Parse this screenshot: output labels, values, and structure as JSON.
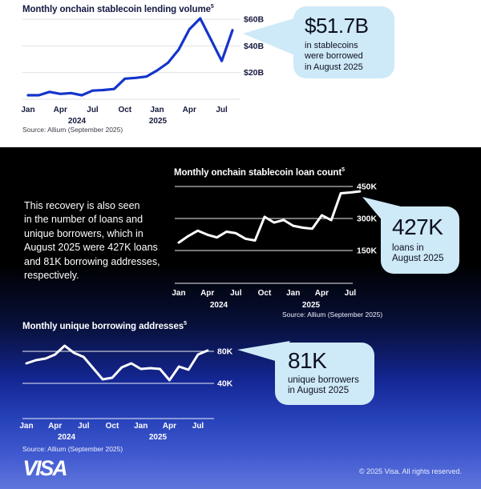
{
  "page": {
    "intro_text": "This recovery is also seen\nin the number of loans and\nunique borrowers, which in\nAugust 2025 were 427K loans\nand 81K borrowing addresses,\nrespectively.",
    "footer": {
      "logo_text": "VISA",
      "copyright": "© 2025 Visa. All rights reserved."
    }
  },
  "colors": {
    "visa_blue": "#1434CB",
    "callout_bg": "#cee9f8",
    "dark_title": "#141a43",
    "white_line": "#ffffff"
  },
  "chart_data": [
    {
      "id": "lending-volume",
      "type": "line",
      "title": "Monthly onchain stablecoin lending volume",
      "footnote_marker": "5",
      "unit": "USD billions",
      "x": [
        "Jan 2024",
        "Feb 2024",
        "Mar 2024",
        "Apr 2024",
        "May 2024",
        "Jun 2024",
        "Jul 2024",
        "Aug 2024",
        "Sep 2024",
        "Oct 2024",
        "Nov 2024",
        "Dec 2024",
        "Jan 2025",
        "Feb 2025",
        "Mar 2025",
        "Apr 2025",
        "May 2025",
        "Jun 2025",
        "Jul 2025",
        "Aug 2025"
      ],
      "values": [
        3.0,
        3.0,
        5.5,
        4.0,
        4.6,
        3.0,
        6.5,
        6.9,
        7.7,
        15.4,
        16.0,
        17.0,
        21.6,
        27.3,
        37.2,
        52.5,
        60.6,
        44.8,
        28.7,
        51.7
      ],
      "ylim": [
        0,
        63
      ],
      "yticks": [
        {
          "value": 60,
          "label": "$60B"
        },
        {
          "value": 40,
          "label": "$40B"
        },
        {
          "value": 20,
          "label": "$20B"
        }
      ],
      "xtick_indices": [
        0,
        3,
        6,
        9,
        12,
        15,
        18
      ],
      "xtick_labels": [
        "Jan",
        "Apr",
        "Jul",
        "Oct",
        "Jan",
        "Apr",
        "Jul"
      ],
      "year_labels": [
        "2024",
        "2025"
      ],
      "grid": "horizontal",
      "legend": "none",
      "source": "Source: Allium (September 2025)",
      "callout": {
        "value": "$51.7B",
        "caption": "in stablecoins\nwere borrowed\nin August 2025"
      }
    },
    {
      "id": "loan-count",
      "type": "line",
      "title": "Monthly onchain stablecoin loan count",
      "footnote_marker": "5",
      "unit": "thousands of loans",
      "x": [
        "Jan 2024",
        "Feb 2024",
        "Mar 2024",
        "Apr 2024",
        "May 2024",
        "Jun 2024",
        "Jul 2024",
        "Aug 2024",
        "Sep 2024",
        "Oct 2024",
        "Nov 2024",
        "Dec 2024",
        "Jan 2025",
        "Feb 2025",
        "Mar 2025",
        "Apr 2025",
        "May 2025",
        "Jun 2025",
        "Jul 2025",
        "Aug 2025"
      ],
      "values": [
        187,
        218,
        243,
        224,
        211,
        238,
        231,
        205,
        197,
        308,
        281,
        293,
        266,
        257,
        252,
        315,
        292,
        418,
        422,
        427
      ],
      "ylim": [
        7,
        475
      ],
      "yticks": [
        {
          "value": 450,
          "label": "450K"
        },
        {
          "value": 300,
          "label": "300K"
        },
        {
          "value": 150,
          "label": "150K"
        }
      ],
      "xtick_indices": [
        0,
        3,
        6,
        9,
        12,
        15,
        18
      ],
      "xtick_labels": [
        "Jan",
        "Apr",
        "Jul",
        "Oct",
        "Jan",
        "Apr",
        "Jul"
      ],
      "year_labels": [
        "2024",
        "2025"
      ],
      "grid": "horizontal",
      "legend": "none",
      "source": "Source: Allium (September 2025)",
      "callout": {
        "value": "427K",
        "caption": "loans in\nAugust 2025"
      }
    },
    {
      "id": "unique-borrowers",
      "type": "line",
      "title": "Monthly unique borrowing addresses",
      "footnote_marker": "5",
      "unit": "thousands of addresses",
      "x": [
        "Jan 2024",
        "Feb 2024",
        "Mar 2024",
        "Apr 2024",
        "May 2024",
        "Jun 2024",
        "Jul 2024",
        "Aug 2024",
        "Sep 2024",
        "Oct 2024",
        "Nov 2024",
        "Dec 2024",
        "Jan 2025",
        "Feb 2025",
        "Mar 2025",
        "Apr 2025",
        "May 2025",
        "Jun 2025",
        "Jul 2025",
        "Aug 2025"
      ],
      "values": [
        65,
        69,
        71,
        76,
        87,
        78,
        73,
        59,
        45,
        47,
        60,
        65,
        58,
        59,
        58,
        44,
        61,
        57,
        76,
        81
      ],
      "ylim": [
        0,
        96
      ],
      "yticks": [
        {
          "value": 80,
          "label": "80K"
        },
        {
          "value": 40,
          "label": "40K"
        }
      ],
      "xtick_indices": [
        0,
        3,
        6,
        9,
        12,
        15,
        18
      ],
      "xtick_labels": [
        "Jan",
        "Apr",
        "Jul",
        "Oct",
        "Jan",
        "Apr",
        "Jul"
      ],
      "year_labels": [
        "2024",
        "2025"
      ],
      "grid": "horizontal",
      "legend": "none",
      "source": "Source: Allium (September 2025)",
      "callout": {
        "value": "81K",
        "caption": "unique borrowers\nin August 2025"
      }
    }
  ]
}
